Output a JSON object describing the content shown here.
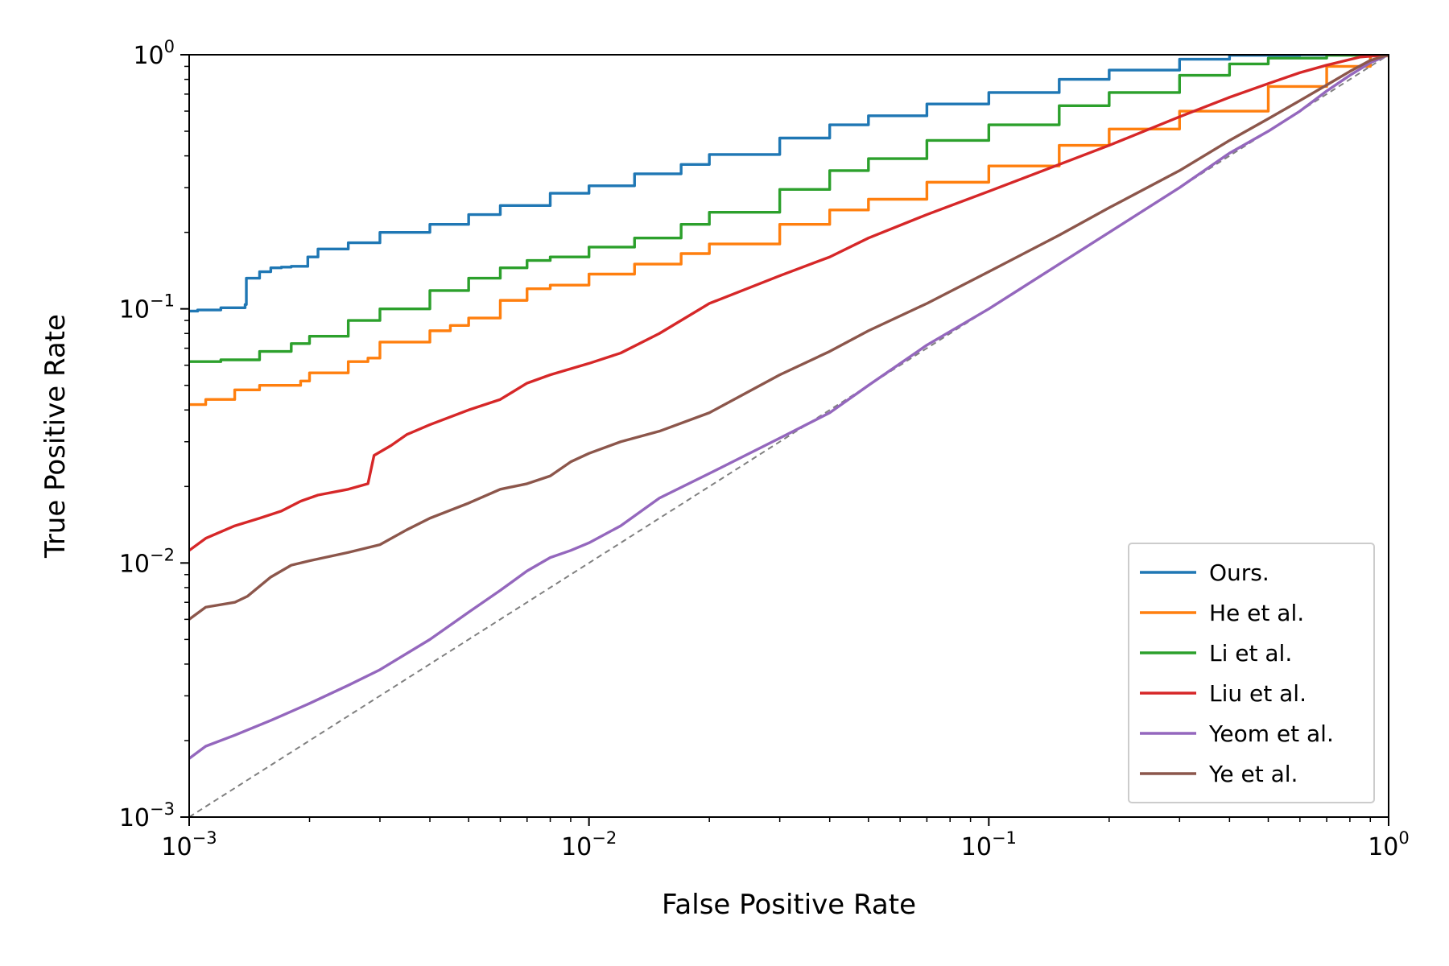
{
  "chart_data": {
    "type": "line",
    "title": "",
    "xlabel": "False Positive Rate",
    "ylabel": "True Positive Rate",
    "xscale": "log",
    "yscale": "log",
    "xlim": [
      0.001,
      1
    ],
    "ylim": [
      0.001,
      1
    ],
    "x_ticks": [
      {
        "base": "10",
        "exp": "−3",
        "value": 0.001
      },
      {
        "base": "10",
        "exp": "−2",
        "value": 0.01
      },
      {
        "base": "10",
        "exp": "−1",
        "value": 0.1
      },
      {
        "base": "10",
        "exp": "0",
        "value": 1
      }
    ],
    "y_ticks": [
      {
        "base": "10",
        "exp": "−3",
        "value": 0.001
      },
      {
        "base": "10",
        "exp": "−2",
        "value": 0.01
      },
      {
        "base": "10",
        "exp": "−1",
        "value": 0.1
      },
      {
        "base": "10",
        "exp": "0",
        "value": 1
      }
    ],
    "grid": false,
    "legend_position": "bottom-right",
    "reference_line": {
      "style": "dashed",
      "color": "#808080",
      "x": [
        0.001,
        1
      ],
      "y": [
        0.001,
        1
      ]
    },
    "series": [
      {
        "name": "Ours.",
        "color": "#1f77b4",
        "step": true,
        "x": [
          0.001,
          0.00105,
          0.0012,
          0.00138,
          0.00139,
          0.0015,
          0.0016,
          0.0017,
          0.0018,
          0.00198,
          0.0021,
          0.0025,
          0.003,
          0.004,
          0.005,
          0.006,
          0.008,
          0.01,
          0.013,
          0.017,
          0.02,
          0.03,
          0.04,
          0.05,
          0.07,
          0.1,
          0.15,
          0.2,
          0.3,
          0.4,
          0.6,
          0.8,
          1.0
        ],
        "y": [
          0.098,
          0.099,
          0.101,
          0.104,
          0.132,
          0.14,
          0.145,
          0.146,
          0.147,
          0.16,
          0.172,
          0.182,
          0.2,
          0.215,
          0.235,
          0.255,
          0.285,
          0.305,
          0.34,
          0.37,
          0.405,
          0.47,
          0.53,
          0.575,
          0.64,
          0.71,
          0.8,
          0.87,
          0.96,
          0.995,
          1.0,
          1.0,
          1.0
        ]
      },
      {
        "name": "He et al.",
        "color": "#ff7f0e",
        "step": true,
        "x": [
          0.001,
          0.0011,
          0.0013,
          0.0015,
          0.0019,
          0.002,
          0.0025,
          0.0028,
          0.003,
          0.004,
          0.0045,
          0.005,
          0.006,
          0.007,
          0.008,
          0.01,
          0.013,
          0.017,
          0.02,
          0.03,
          0.04,
          0.05,
          0.07,
          0.1,
          0.15,
          0.2,
          0.3,
          0.5,
          0.7,
          0.9,
          1.0
        ],
        "y": [
          0.042,
          0.044,
          0.048,
          0.05,
          0.052,
          0.056,
          0.062,
          0.064,
          0.074,
          0.082,
          0.086,
          0.092,
          0.108,
          0.12,
          0.124,
          0.137,
          0.15,
          0.165,
          0.18,
          0.215,
          0.245,
          0.27,
          0.315,
          0.365,
          0.44,
          0.51,
          0.6,
          0.75,
          0.9,
          0.99,
          1.0
        ]
      },
      {
        "name": "Li et al.",
        "color": "#2ca02c",
        "step": true,
        "x": [
          0.001,
          0.0012,
          0.0015,
          0.0018,
          0.002,
          0.0025,
          0.003,
          0.004,
          0.005,
          0.006,
          0.007,
          0.008,
          0.01,
          0.013,
          0.017,
          0.02,
          0.03,
          0.04,
          0.05,
          0.07,
          0.1,
          0.15,
          0.2,
          0.3,
          0.4,
          0.5,
          0.7,
          1.0
        ],
        "y": [
          0.062,
          0.063,
          0.068,
          0.073,
          0.078,
          0.09,
          0.1,
          0.118,
          0.132,
          0.145,
          0.155,
          0.16,
          0.175,
          0.19,
          0.215,
          0.24,
          0.295,
          0.35,
          0.39,
          0.46,
          0.53,
          0.63,
          0.71,
          0.83,
          0.92,
          0.97,
          0.995,
          1.0
        ]
      },
      {
        "name": "Liu et al.",
        "color": "#d62728",
        "step": false,
        "x": [
          0.001,
          0.0011,
          0.0013,
          0.0015,
          0.0017,
          0.0019,
          0.0021,
          0.0025,
          0.0028,
          0.0029,
          0.0032,
          0.0035,
          0.004,
          0.005,
          0.006,
          0.007,
          0.008,
          0.01,
          0.012,
          0.015,
          0.02,
          0.03,
          0.04,
          0.05,
          0.07,
          0.1,
          0.15,
          0.2,
          0.3,
          0.4,
          0.5,
          0.6,
          0.7,
          0.85,
          1.0
        ],
        "y": [
          0.0112,
          0.0125,
          0.014,
          0.015,
          0.016,
          0.0175,
          0.0185,
          0.0195,
          0.0205,
          0.0265,
          0.029,
          0.032,
          0.035,
          0.04,
          0.044,
          0.051,
          0.055,
          0.061,
          0.067,
          0.08,
          0.105,
          0.135,
          0.16,
          0.19,
          0.235,
          0.29,
          0.37,
          0.44,
          0.57,
          0.68,
          0.77,
          0.85,
          0.91,
          0.98,
          1.0
        ]
      },
      {
        "name": "Yeom et al.",
        "color": "#9467bd",
        "step": false,
        "x": [
          0.001,
          0.0011,
          0.0013,
          0.0016,
          0.002,
          0.0025,
          0.003,
          0.004,
          0.005,
          0.006,
          0.007,
          0.008,
          0.009,
          0.01,
          0.012,
          0.015,
          0.02,
          0.03,
          0.04,
          0.05,
          0.07,
          0.1,
          0.15,
          0.2,
          0.3,
          0.4,
          0.5,
          0.6,
          0.7,
          0.8,
          0.9,
          1.0
        ],
        "y": [
          0.0017,
          0.0019,
          0.0021,
          0.0024,
          0.0028,
          0.0033,
          0.0038,
          0.005,
          0.0064,
          0.0078,
          0.0093,
          0.0105,
          0.0112,
          0.012,
          0.014,
          0.018,
          0.0225,
          0.031,
          0.039,
          0.05,
          0.072,
          0.1,
          0.15,
          0.2,
          0.3,
          0.41,
          0.5,
          0.6,
          0.72,
          0.83,
          0.93,
          1.0
        ]
      },
      {
        "name": "Ye et al.",
        "color": "#8c564b",
        "step": false,
        "x": [
          0.001,
          0.0011,
          0.0013,
          0.0014,
          0.0016,
          0.0018,
          0.002,
          0.0025,
          0.003,
          0.0035,
          0.004,
          0.005,
          0.006,
          0.007,
          0.008,
          0.009,
          0.01,
          0.012,
          0.015,
          0.02,
          0.03,
          0.04,
          0.05,
          0.07,
          0.1,
          0.15,
          0.2,
          0.3,
          0.4,
          0.5,
          0.6,
          0.7,
          0.8,
          0.9,
          1.0
        ],
        "y": [
          0.006,
          0.0067,
          0.007,
          0.0074,
          0.0088,
          0.0098,
          0.0102,
          0.011,
          0.0118,
          0.0135,
          0.015,
          0.0172,
          0.0195,
          0.0205,
          0.022,
          0.025,
          0.027,
          0.03,
          0.033,
          0.039,
          0.055,
          0.068,
          0.082,
          0.105,
          0.14,
          0.195,
          0.25,
          0.35,
          0.46,
          0.56,
          0.66,
          0.76,
          0.86,
          0.95,
          1.0
        ]
      }
    ]
  }
}
